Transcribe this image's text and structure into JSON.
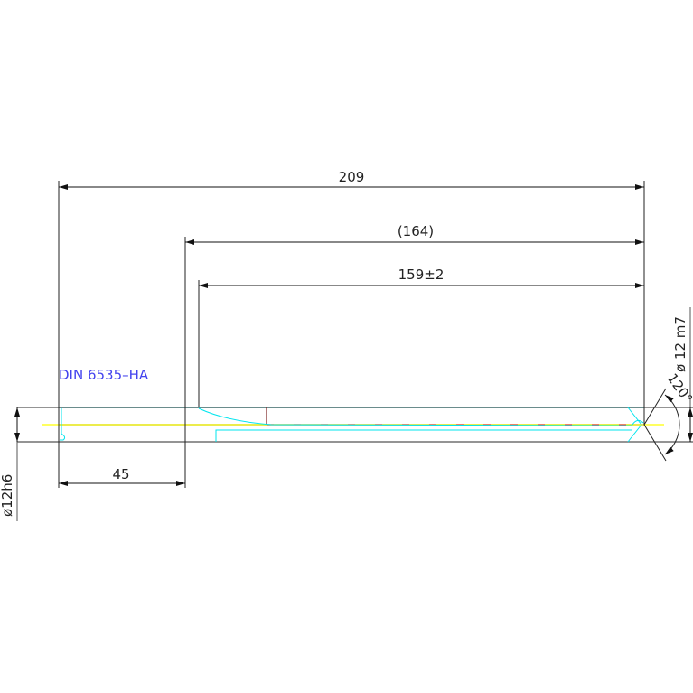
{
  "drawing": {
    "part_label": "DIN 6535–HA",
    "dimensions": {
      "overall_length": "209",
      "reference_length": "(164)",
      "flute_length": "159±2",
      "shank_length": "45",
      "shank_diameter": "ø12h6",
      "cutting_diameter": "ø 12 m7",
      "point_angle": "120°"
    }
  },
  "colors": {
    "outline": "#555555",
    "dimension": "#222222",
    "label": "#4444ee",
    "centerline": "#ffff00",
    "hidden": "#00e5ee",
    "accent": "#ff3030"
  }
}
